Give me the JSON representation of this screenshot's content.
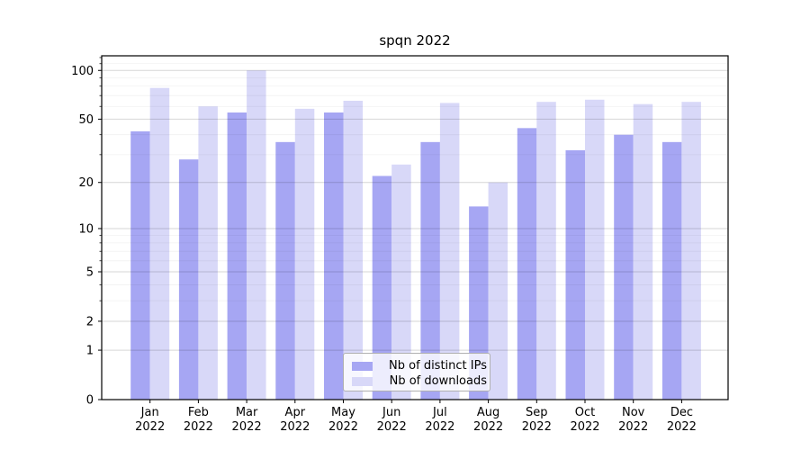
{
  "chart_data": {
    "type": "bar",
    "title": "spqn 2022",
    "months": [
      "Jan",
      "Feb",
      "Mar",
      "Apr",
      "May",
      "Jun",
      "Jul",
      "Aug",
      "Sep",
      "Oct",
      "Nov",
      "Dec"
    ],
    "x_year_label": "2022",
    "series": [
      {
        "name": "Nb of distinct IPs",
        "color": "#a6a6f3",
        "values": [
          42,
          28,
          55,
          36,
          55,
          22,
          36,
          14,
          44,
          32,
          40,
          36
        ]
      },
      {
        "name": "Nb of downloads",
        "color": "#d8d8f8",
        "values": [
          78,
          60,
          100,
          58,
          65,
          26,
          63,
          20,
          64,
          66,
          62,
          64
        ]
      }
    ],
    "yscale": "log1p",
    "ylim": [
      0,
      123
    ],
    "yticks": [
      0,
      1,
      2,
      5,
      10,
      20,
      50,
      100
    ],
    "yticks_minor": [
      3,
      4,
      6,
      7,
      8,
      9,
      30,
      40,
      60,
      70,
      80,
      90,
      110,
      120
    ],
    "grid": "on",
    "legend_position": "lower center"
  }
}
